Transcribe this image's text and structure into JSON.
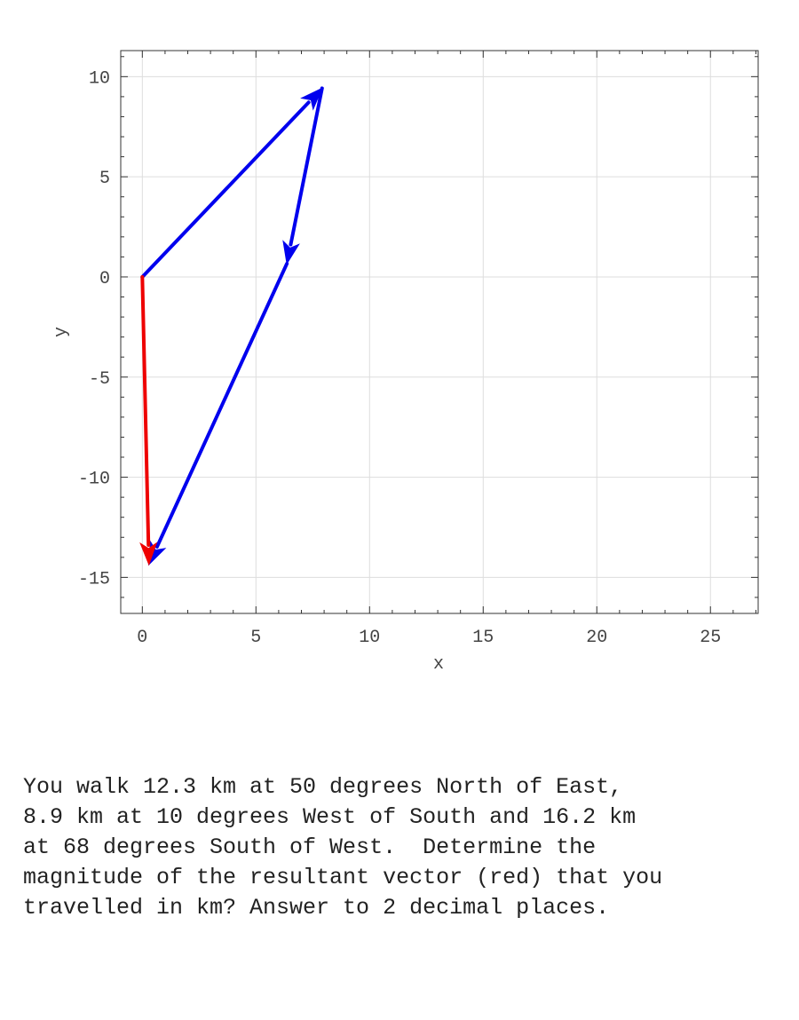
{
  "chart_data": {
    "type": "vector-plot",
    "xlabel": "x",
    "ylabel": "y",
    "xlim": [
      -0.95,
      27.1
    ],
    "ylim": [
      -16.8,
      11.3
    ],
    "x_ticks": [
      0,
      5,
      10,
      15,
      20,
      25
    ],
    "y_ticks": [
      10,
      5,
      0,
      -5,
      -10,
      -15
    ],
    "x_tick_labels": [
      "0",
      "5",
      "10",
      "15",
      "20",
      "25"
    ],
    "y_tick_labels": [
      "10",
      "5",
      "0",
      "-5",
      "-10",
      "-15"
    ],
    "minor_x_step": 1,
    "minor_y_step": 1,
    "grid": true,
    "vectors": [
      {
        "start": [
          0,
          0
        ],
        "end": [
          7.91,
          9.42
        ],
        "color": "#0000ee"
      },
      {
        "start": [
          7.91,
          9.42
        ],
        "end": [
          6.36,
          0.66
        ],
        "color": "#0000ee"
      },
      {
        "start": [
          6.36,
          0.66
        ],
        "end": [
          0.29,
          -14.36
        ],
        "color": "#0000ee"
      },
      {
        "start": [
          0,
          0
        ],
        "end": [
          0.29,
          -14.36
        ],
        "color": "#ee0000"
      }
    ]
  },
  "question": {
    "text": "You walk 12.3 km at 50 degrees North of East,\n8.9 km at 10 degrees West of South and 16.2 km\nat 68 degrees South of West.  Determine the\nmagnitude of the resultant vector (red) that you\ntravelled in km? Answer to 2 decimal places."
  }
}
